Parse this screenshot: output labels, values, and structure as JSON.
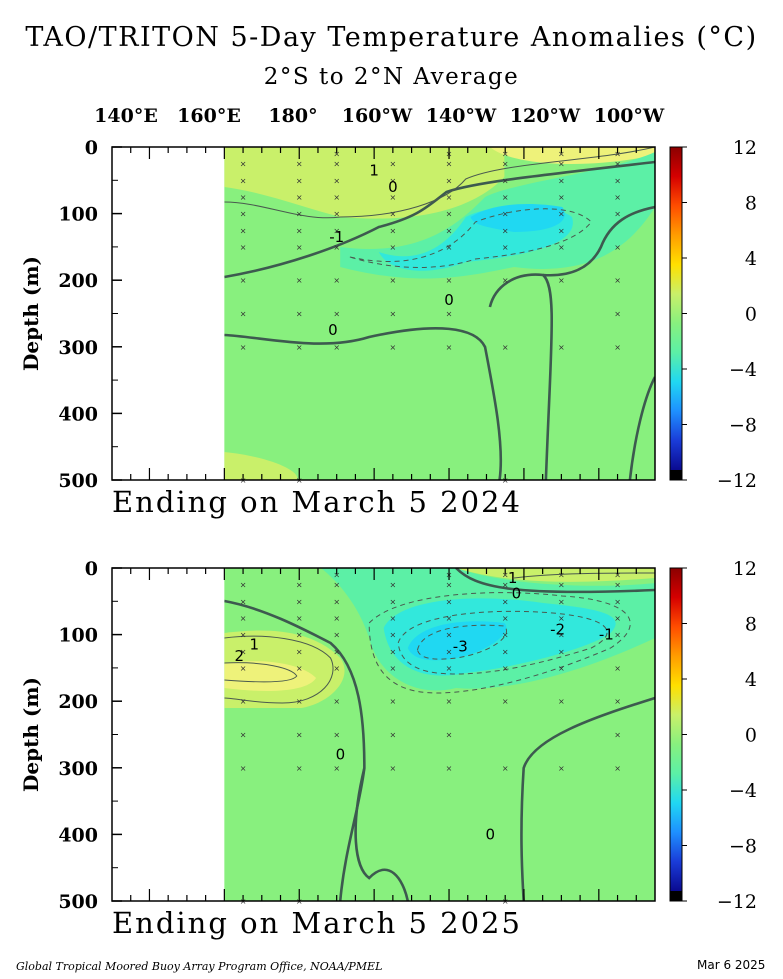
{
  "header": {
    "title": "TAO/TRITON 5-Day Temperature Anomalies (°C)",
    "subtitle": "2°S to 2°N Average"
  },
  "longitude_labels": [
    "140°E",
    "160°E",
    "180°",
    "160°W",
    "140°W",
    "120°W",
    "100°W"
  ],
  "footer": {
    "credit": "Global Tropical Moored Buoy Array Program Office, NOAA/PMEL",
    "date": "Mar  6 2025"
  },
  "colors": {
    "zero": "#88f07e",
    "positive_1": "#c9f06a",
    "positive_2": "#eef27a",
    "negative_1": "#5cf0a6",
    "negative_2": "#32e8dc",
    "negative_3": "#20d8f2"
  },
  "chart_data": [
    {
      "type": "heatmap",
      "ending": "Ending on March 5 2024",
      "ylabel": "Depth (m)",
      "y_ticks": [
        "0",
        "100",
        "200",
        "300",
        "400",
        "500"
      ],
      "ylim": [
        0,
        500
      ],
      "y_reversed": true,
      "xlim_deg_east": [
        130,
        275
      ],
      "colorbar_ticks": [
        "12",
        "8",
        "4",
        "0",
        "−4",
        "−8",
        "−12"
      ],
      "colorbar_range": [
        -12,
        12
      ],
      "contour_labels": [
        {
          "value": "1",
          "lon": 200,
          "depth": 35
        },
        {
          "value": "0",
          "lon": 205,
          "depth": 60
        },
        {
          "value": "-1",
          "lon": 190,
          "depth": 135
        },
        {
          "value": "0",
          "lon": 189,
          "depth": 275
        },
        {
          "value": "0",
          "lon": 220,
          "depth": 230
        }
      ]
    },
    {
      "type": "heatmap",
      "ending": "Ending on March 5 2025",
      "ylabel": "Depth (m)",
      "y_ticks": [
        "0",
        "100",
        "200",
        "300",
        "400",
        "500"
      ],
      "ylim": [
        0,
        500
      ],
      "y_reversed": true,
      "xlim_deg_east": [
        130,
        275
      ],
      "colorbar_ticks": [
        "12",
        "8",
        "4",
        "0",
        "−4",
        "−8",
        "−12"
      ],
      "colorbar_range": [
        -12,
        12
      ],
      "contour_labels": [
        {
          "value": "1",
          "lon": 168,
          "depth": 115
        },
        {
          "value": "2",
          "lon": 164,
          "depth": 132
        },
        {
          "value": "1",
          "lon": 237,
          "depth": 15
        },
        {
          "value": "0",
          "lon": 238,
          "depth": 38
        },
        {
          "value": "-2",
          "lon": 249,
          "depth": 92
        },
        {
          "value": "-1",
          "lon": 262,
          "depth": 100
        },
        {
          "value": "-3",
          "lon": 223,
          "depth": 118
        },
        {
          "value": "0",
          "lon": 191,
          "depth": 280
        },
        {
          "value": "0",
          "lon": 231,
          "depth": 400
        }
      ]
    }
  ]
}
